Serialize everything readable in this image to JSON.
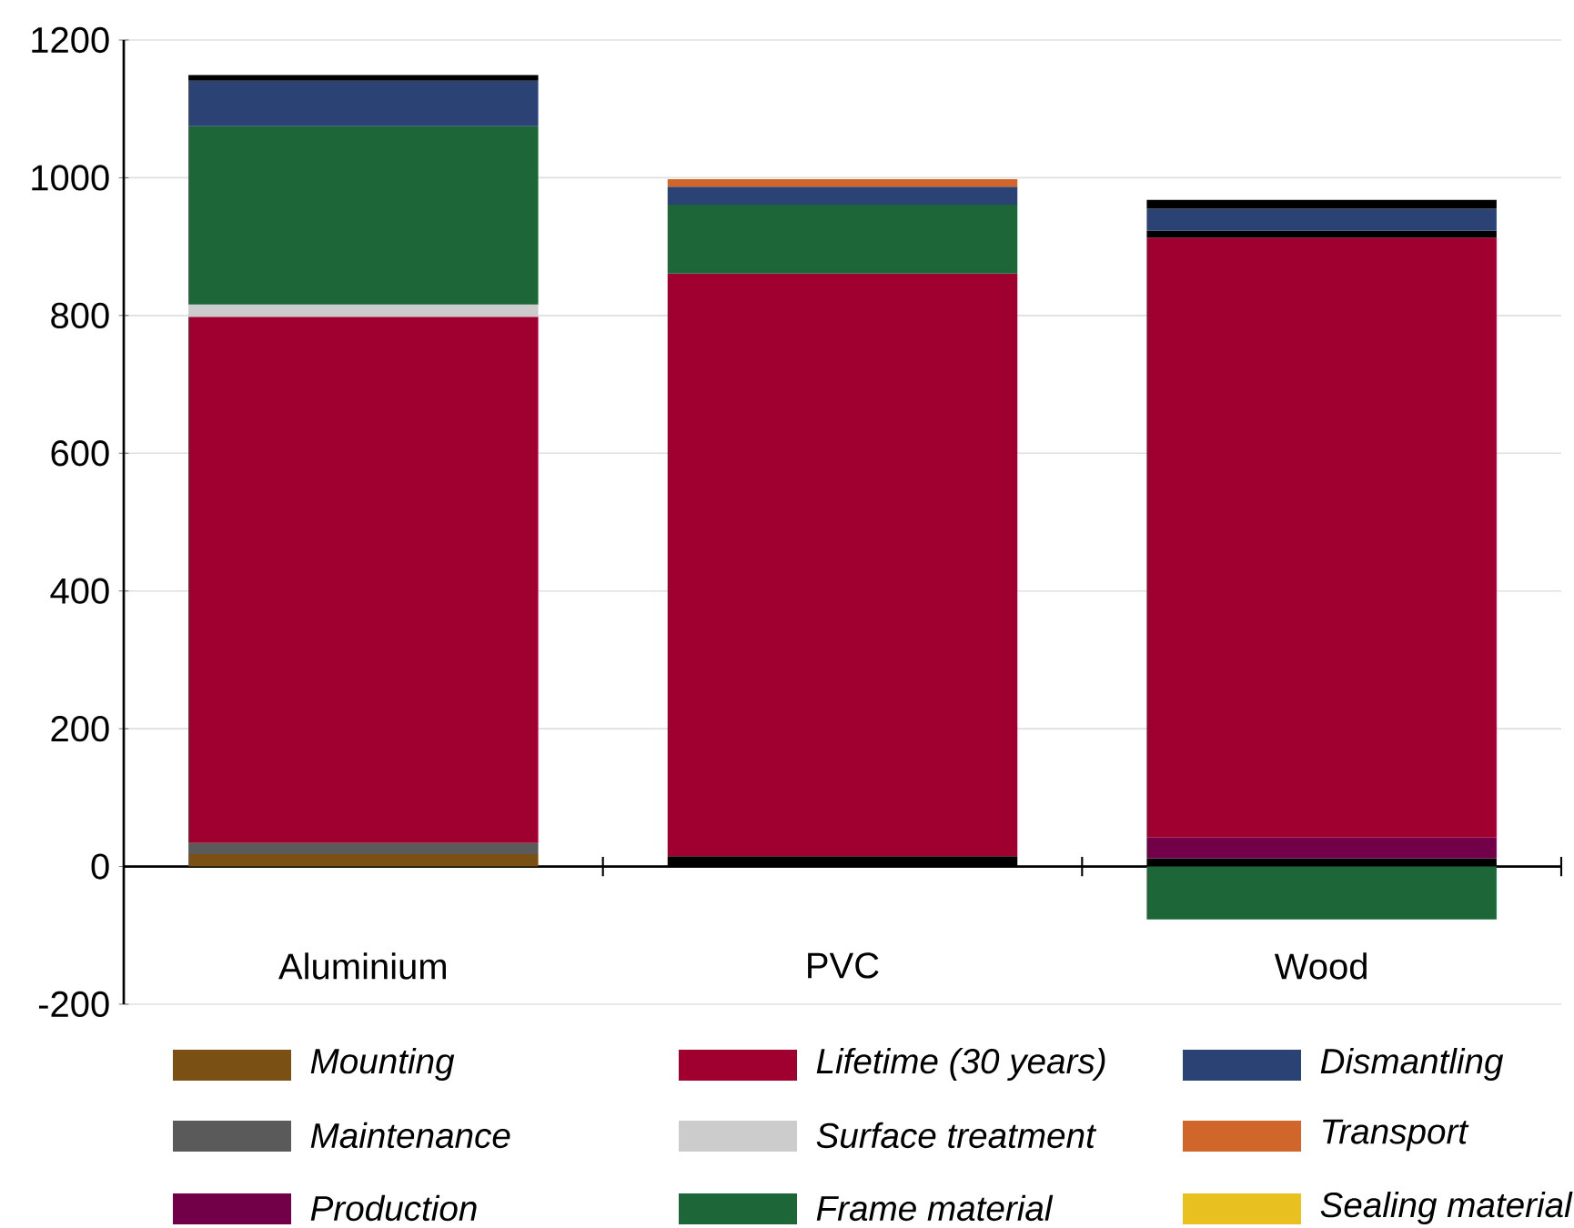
{
  "chart_data": {
    "type": "bar",
    "stacked": true,
    "categories": [
      "Aluminium",
      "PVC",
      "Wood"
    ],
    "series": [
      {
        "name": "Mounting",
        "color": "#7a5014",
        "values": [
          18,
          null,
          null
        ]
      },
      {
        "name": "Maintenance",
        "color": "#5a5a5a",
        "values": [
          16,
          null,
          null
        ]
      },
      {
        "color": "#000000",
        "values": [
          null,
          15,
          12
        ]
      },
      {
        "name": "Production",
        "color": "#720048",
        "values": [
          null,
          null,
          30
        ]
      },
      {
        "name": "Lifetime (30 years)",
        "color": "#a00030",
        "values": [
          764,
          846,
          871
        ]
      },
      {
        "name": "Surface treatment",
        "color": "#cccccc",
        "values": [
          18,
          null,
          null
        ]
      },
      {
        "color": "#000000",
        "values": [
          null,
          null,
          10
        ]
      },
      {
        "name": "Frame material",
        "color": "#1c6638",
        "values": [
          259,
          100,
          -77
        ]
      },
      {
        "name": "Dismantling",
        "color": "#2a4274",
        "values": [
          66,
          26,
          32
        ]
      },
      {
        "name": "Transport",
        "color": "#d0662a",
        "values": [
          null,
          11,
          null
        ]
      },
      {
        "color": "#000000",
        "values": [
          8,
          null,
          13
        ]
      },
      {
        "name": "Sealing material",
        "color": "#e8c020",
        "values": [
          null,
          null,
          null
        ]
      }
    ],
    "ylim": [
      -200,
      1200
    ],
    "yticks": [
      -200,
      0,
      200,
      400,
      600,
      800,
      1000,
      1200
    ],
    "grid": "y",
    "legend": "bottom"
  }
}
